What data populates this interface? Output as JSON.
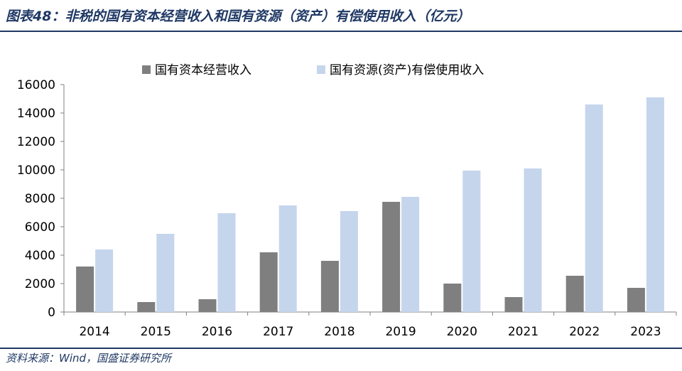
{
  "figure": {
    "title": "图表48：非税的国有资本经营收入和国有资源（资产）有偿使用收入（亿元）",
    "source": "资料来源：Wind，国盛证券研究所"
  },
  "chart_data": {
    "type": "bar",
    "categories": [
      "2014",
      "2015",
      "2016",
      "2017",
      "2018",
      "2019",
      "2020",
      "2021",
      "2022",
      "2023"
    ],
    "series": [
      {
        "name": "国有资本经营收入",
        "color": "#7f7f7f",
        "values": [
          3200,
          700,
          900,
          4200,
          3600,
          7750,
          2000,
          1050,
          2550,
          1700
        ]
      },
      {
        "name": "国有资源(资产)有偿使用收入",
        "color": "#c5d5ec",
        "values": [
          4400,
          5500,
          6950,
          7500,
          7100,
          8100,
          9950,
          10100,
          14600,
          15100
        ]
      }
    ],
    "ylim": [
      0,
      16000
    ],
    "yticks": [
      "0",
      "2000",
      "4000",
      "6000",
      "8000",
      "10000",
      "12000",
      "14000",
      "16000"
    ],
    "grid": false,
    "legend": "top"
  }
}
